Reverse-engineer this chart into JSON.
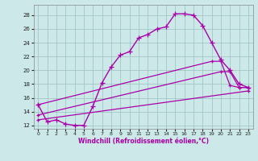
{
  "xlabel": "Windchill (Refroidissement éolien,°C)",
  "background_color": "#cce8e8",
  "line_color": "#aa00aa",
  "xlim": [
    -0.5,
    23.5
  ],
  "ylim": [
    11.5,
    29.5
  ],
  "yticks": [
    12,
    14,
    16,
    18,
    20,
    22,
    24,
    26,
    28
  ],
  "xticks": [
    0,
    1,
    2,
    3,
    4,
    5,
    6,
    7,
    8,
    9,
    10,
    11,
    12,
    13,
    14,
    15,
    16,
    17,
    18,
    19,
    20,
    21,
    22,
    23
  ],
  "lines": [
    {
      "x": [
        0,
        1,
        2,
        3,
        4,
        5,
        6,
        7,
        8,
        9,
        10,
        11,
        12,
        13,
        14,
        15,
        16,
        17,
        18,
        19,
        20,
        21,
        22,
        23
      ],
      "y": [
        15,
        12.5,
        12.8,
        12.2,
        12.0,
        12.0,
        14.8,
        18.2,
        20.5,
        22.2,
        22.7,
        24.7,
        25.2,
        26.0,
        26.3,
        28.2,
        28.2,
        28.0,
        26.5,
        24.0,
        21.5,
        20.0,
        18.0,
        17.5
      ]
    },
    {
      "x": [
        0,
        19,
        20,
        21,
        22,
        23
      ],
      "y": [
        15.0,
        21.3,
        21.3,
        17.8,
        17.5,
        17.5
      ]
    },
    {
      "x": [
        0,
        20,
        21,
        22,
        23
      ],
      "y": [
        13.5,
        19.8,
        19.8,
        17.5,
        17.5
      ]
    },
    {
      "x": [
        0,
        23
      ],
      "y": [
        12.8,
        17.0
      ]
    }
  ]
}
